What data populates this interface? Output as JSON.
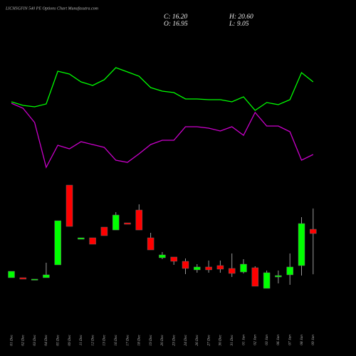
{
  "chart_data": {
    "type": "candlestick",
    "title": "LICHSGFIN 540 PE Options Chart Munafasutra.com",
    "ohlc_text": {
      "close": "C: 16.20",
      "high": "H: 20.60",
      "open": "O: 16.95",
      "low": "L: 9.05"
    },
    "categories": [
      "01 Dec",
      "02 Dec",
      "03 Dec",
      "04 Dec",
      "05 Dec",
      "09 Dec",
      "11 Dec",
      "12 Dec",
      "13 Dec",
      "16 Dec",
      "17 Dec",
      "18 Dec",
      "19 Dec",
      "20 Dec",
      "23 Dec",
      "24 Dec",
      "26 Dec",
      "27 Dec",
      "30 Dec",
      "31 Dec",
      "01 Jan",
      "02 Jan",
      "03 Jan",
      "06 Jan",
      "07 Jan",
      "08 Jan",
      "09 Jan"
    ],
    "open": [
      8.45,
      8.45,
      8.075,
      8.45,
      10.7,
      24.7,
      15.2,
      15.45,
      17.325,
      16.825,
      18.075,
      20.325,
      15.45,
      11.95,
      12.075,
      11.325,
      9.825,
      10.325,
      10.575,
      10.075,
      9.45,
      10.2,
      6.575,
      8.575,
      8.95,
      10.575,
      16.95
    ],
    "high": [
      9.575,
      8.45,
      8.2,
      11.075,
      18.45,
      24.7,
      15.45,
      15.45,
      17.325,
      19.95,
      18.075,
      21.325,
      16.325,
      12.95,
      12.075,
      11.825,
      10.825,
      11.45,
      11.45,
      12.7,
      11.7,
      10.45,
      9.7,
      9.7,
      12.7,
      19.075,
      20.6
    ],
    "low": [
      8.45,
      8.2,
      8.075,
      8.45,
      10.7,
      17.45,
      15.2,
      14.325,
      15.825,
      16.825,
      17.825,
      16.825,
      13.325,
      11.7,
      10.7,
      9.075,
      9.325,
      9.325,
      9.325,
      8.575,
      9.2,
      6.95,
      6.575,
      7.45,
      7.2,
      8.825,
      9.05
    ],
    "close": [
      9.575,
      8.2,
      8.2,
      8.95,
      18.45,
      17.45,
      15.45,
      14.325,
      15.825,
      19.45,
      17.825,
      16.825,
      13.325,
      12.45,
      11.325,
      10.075,
      10.325,
      9.825,
      9.95,
      9.2,
      10.825,
      6.95,
      9.325,
      8.825,
      10.325,
      17.95,
      16.2
    ],
    "up_color": "#00ff00",
    "down_color": "#ff0000",
    "wick_color": "#999999",
    "ylim": [
      0,
      40
    ],
    "indicators": {
      "ylim": [
        0,
        100
      ],
      "series": [
        {
          "color": "#00ff00",
          "values": [
            68.5,
            66,
            65,
            67,
            90,
            88,
            82.5,
            80,
            84,
            92.5,
            89.5,
            86.5,
            78.5,
            76,
            75,
            70.5,
            70.5,
            70,
            70,
            68.5,
            72,
            62.5,
            68,
            66.5,
            70,
            89,
            82.5
          ]
        },
        {
          "color": "#cc00cc",
          "values": [
            67.5,
            64,
            54,
            22.5,
            38,
            35.5,
            40.5,
            38.5,
            36.5,
            27.5,
            26,
            32,
            38.5,
            41.5,
            41.5,
            51,
            51,
            50,
            48,
            51,
            45,
            61,
            51.5,
            51.5,
            47.5,
            27.5,
            31.5
          ]
        }
      ]
    }
  }
}
